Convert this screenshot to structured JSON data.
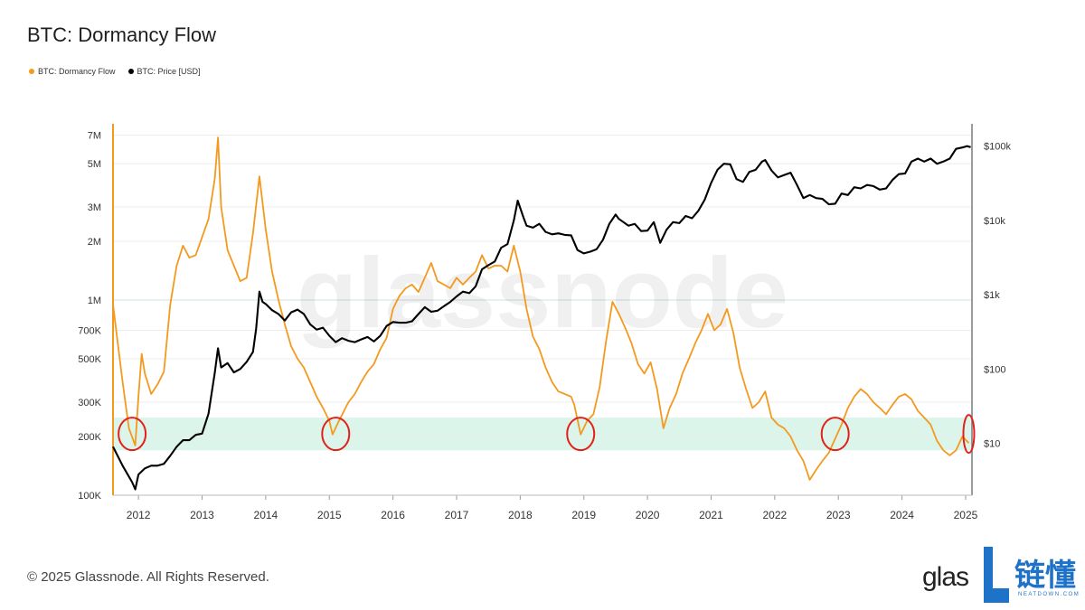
{
  "page": {
    "title": "BTC: Dormancy Flow",
    "copyright": "© 2025 Glassnode. All Rights Reserved.",
    "brand_text": "glas",
    "watermark": "glassnode",
    "logo_cn": "链懂",
    "logo_en": "NEATDOWN.COM"
  },
  "colors": {
    "dormancy": "#f39a1e",
    "price": "#000000",
    "band": "#dcf5ea",
    "circle": "#e0221a",
    "logo": "#1e73c8"
  },
  "chart_data": {
    "type": "line",
    "legend": [
      "BTC: Dormancy Flow",
      "BTC: Price [USD]"
    ],
    "x_ticks": [
      "2012",
      "2013",
      "2014",
      "2015",
      "2016",
      "2017",
      "2018",
      "2019",
      "2020",
      "2021",
      "2022",
      "2023",
      "2024",
      "2025"
    ],
    "xlim": [
      2011.6,
      2025.1
    ],
    "y_left": {
      "scale": "log",
      "ylim": [
        100000,
        8000000
      ],
      "ticks": [
        100000,
        200000,
        300000,
        500000,
        700000,
        1000000,
        2000000,
        3000000,
        5000000,
        7000000
      ],
      "tick_labels": [
        "100K",
        "200K",
        "300K",
        "500K",
        "700K",
        "1M",
        "2M",
        "3M",
        "5M",
        "7M"
      ]
    },
    "y_right": {
      "scale": "log",
      "ylim": [
        2,
        200000
      ],
      "ticks": [
        10,
        100,
        1000,
        10000,
        100000
      ],
      "tick_labels": [
        "$10",
        "$100",
        "$1k",
        "$10k",
        "$100k"
      ]
    },
    "band": {
      "axis": "left",
      "range": [
        170000,
        250000
      ]
    },
    "circled_lows": [
      2011.9,
      2015.1,
      2018.95,
      2022.95,
      2025.05
    ],
    "series": [
      {
        "name": "BTC: Dormancy Flow",
        "axis": "left",
        "points": [
          [
            2011.6,
            950000
          ],
          [
            2011.65,
            700000
          ],
          [
            2011.75,
            380000
          ],
          [
            2011.85,
            220000
          ],
          [
            2011.95,
            180000
          ],
          [
            2012.0,
            320000
          ],
          [
            2012.05,
            530000
          ],
          [
            2012.1,
            420000
          ],
          [
            2012.2,
            330000
          ],
          [
            2012.3,
            370000
          ],
          [
            2012.4,
            430000
          ],
          [
            2012.5,
            950000
          ],
          [
            2012.6,
            1500000
          ],
          [
            2012.7,
            1900000
          ],
          [
            2012.8,
            1650000
          ],
          [
            2012.9,
            1700000
          ],
          [
            2013.0,
            2100000
          ],
          [
            2013.1,
            2600000
          ],
          [
            2013.2,
            4200000
          ],
          [
            2013.25,
            6800000
          ],
          [
            2013.3,
            3000000
          ],
          [
            2013.4,
            1800000
          ],
          [
            2013.5,
            1500000
          ],
          [
            2013.6,
            1250000
          ],
          [
            2013.7,
            1300000
          ],
          [
            2013.8,
            2200000
          ],
          [
            2013.9,
            4300000
          ],
          [
            2014.0,
            2300000
          ],
          [
            2014.1,
            1400000
          ],
          [
            2014.2,
            1000000
          ],
          [
            2014.3,
            750000
          ],
          [
            2014.4,
            580000
          ],
          [
            2014.5,
            500000
          ],
          [
            2014.6,
            450000
          ],
          [
            2014.7,
            380000
          ],
          [
            2014.8,
            320000
          ],
          [
            2014.9,
            280000
          ],
          [
            2015.0,
            240000
          ],
          [
            2015.05,
            205000
          ],
          [
            2015.15,
            240000
          ],
          [
            2015.3,
            300000
          ],
          [
            2015.4,
            330000
          ],
          [
            2015.5,
            380000
          ],
          [
            2015.6,
            430000
          ],
          [
            2015.7,
            470000
          ],
          [
            2015.8,
            560000
          ],
          [
            2015.9,
            640000
          ],
          [
            2016.0,
            900000
          ],
          [
            2016.1,
            1050000
          ],
          [
            2016.2,
            1150000
          ],
          [
            2016.3,
            1200000
          ],
          [
            2016.4,
            1100000
          ],
          [
            2016.5,
            1300000
          ],
          [
            2016.6,
            1550000
          ],
          [
            2016.7,
            1250000
          ],
          [
            2016.8,
            1200000
          ],
          [
            2016.9,
            1150000
          ],
          [
            2017.0,
            1300000
          ],
          [
            2017.1,
            1200000
          ],
          [
            2017.2,
            1300000
          ],
          [
            2017.3,
            1400000
          ],
          [
            2017.4,
            1700000
          ],
          [
            2017.5,
            1450000
          ],
          [
            2017.6,
            1500000
          ],
          [
            2017.7,
            1500000
          ],
          [
            2017.8,
            1400000
          ],
          [
            2017.9,
            1900000
          ],
          [
            2018.0,
            1400000
          ],
          [
            2018.1,
            900000
          ],
          [
            2018.2,
            650000
          ],
          [
            2018.3,
            560000
          ],
          [
            2018.4,
            450000
          ],
          [
            2018.5,
            380000
          ],
          [
            2018.6,
            340000
          ],
          [
            2018.7,
            330000
          ],
          [
            2018.8,
            320000
          ],
          [
            2018.85,
            290000
          ],
          [
            2018.95,
            205000
          ],
          [
            2019.05,
            240000
          ],
          [
            2019.15,
            260000
          ],
          [
            2019.25,
            360000
          ],
          [
            2019.35,
            620000
          ],
          [
            2019.45,
            980000
          ],
          [
            2019.55,
            850000
          ],
          [
            2019.65,
            720000
          ],
          [
            2019.75,
            600000
          ],
          [
            2019.85,
            470000
          ],
          [
            2019.95,
            420000
          ],
          [
            2020.05,
            480000
          ],
          [
            2020.15,
            350000
          ],
          [
            2020.25,
            220000
          ],
          [
            2020.35,
            280000
          ],
          [
            2020.45,
            330000
          ],
          [
            2020.55,
            420000
          ],
          [
            2020.65,
            500000
          ],
          [
            2020.75,
            600000
          ],
          [
            2020.85,
            700000
          ],
          [
            2020.95,
            850000
          ],
          [
            2021.05,
            700000
          ],
          [
            2021.15,
            750000
          ],
          [
            2021.25,
            900000
          ],
          [
            2021.35,
            680000
          ],
          [
            2021.45,
            450000
          ],
          [
            2021.55,
            350000
          ],
          [
            2021.65,
            280000
          ],
          [
            2021.75,
            300000
          ],
          [
            2021.85,
            340000
          ],
          [
            2021.95,
            250000
          ],
          [
            2022.05,
            230000
          ],
          [
            2022.15,
            220000
          ],
          [
            2022.25,
            200000
          ],
          [
            2022.35,
            170000
          ],
          [
            2022.45,
            150000
          ],
          [
            2022.55,
            120000
          ],
          [
            2022.65,
            135000
          ],
          [
            2022.75,
            150000
          ],
          [
            2022.85,
            165000
          ],
          [
            2022.95,
            195000
          ],
          [
            2023.05,
            230000
          ],
          [
            2023.15,
            280000
          ],
          [
            2023.25,
            320000
          ],
          [
            2023.35,
            350000
          ],
          [
            2023.45,
            330000
          ],
          [
            2023.55,
            300000
          ],
          [
            2023.65,
            280000
          ],
          [
            2023.75,
            260000
          ],
          [
            2023.85,
            290000
          ],
          [
            2023.95,
            320000
          ],
          [
            2024.05,
            330000
          ],
          [
            2024.15,
            310000
          ],
          [
            2024.25,
            270000
          ],
          [
            2024.35,
            250000
          ],
          [
            2024.45,
            230000
          ],
          [
            2024.55,
            190000
          ],
          [
            2024.65,
            170000
          ],
          [
            2024.75,
            160000
          ],
          [
            2024.85,
            170000
          ],
          [
            2024.95,
            200000
          ],
          [
            2025.05,
            185000
          ]
        ]
      },
      {
        "name": "BTC: Price [USD]",
        "axis": "right",
        "points": [
          [
            2011.6,
            9
          ],
          [
            2011.75,
            5
          ],
          [
            2011.9,
            3
          ],
          [
            2011.95,
            2.4
          ],
          [
            2012.0,
            3.8
          ],
          [
            2012.1,
            4.6
          ],
          [
            2012.2,
            5
          ],
          [
            2012.3,
            5
          ],
          [
            2012.4,
            5.3
          ],
          [
            2012.5,
            6.8
          ],
          [
            2012.6,
            9
          ],
          [
            2012.7,
            11
          ],
          [
            2012.8,
            11
          ],
          [
            2012.9,
            13
          ],
          [
            2013.0,
            13.5
          ],
          [
            2013.1,
            25
          ],
          [
            2013.2,
            90
          ],
          [
            2013.25,
            190
          ],
          [
            2013.3,
            105
          ],
          [
            2013.4,
            120
          ],
          [
            2013.5,
            90
          ],
          [
            2013.6,
            100
          ],
          [
            2013.7,
            125
          ],
          [
            2013.8,
            170
          ],
          [
            2013.85,
            350
          ],
          [
            2013.9,
            1100
          ],
          [
            2013.95,
            800
          ],
          [
            2014.0,
            750
          ],
          [
            2014.1,
            620
          ],
          [
            2014.2,
            550
          ],
          [
            2014.3,
            450
          ],
          [
            2014.4,
            580
          ],
          [
            2014.5,
            630
          ],
          [
            2014.6,
            550
          ],
          [
            2014.7,
            400
          ],
          [
            2014.8,
            340
          ],
          [
            2014.9,
            360
          ],
          [
            2015.0,
            280
          ],
          [
            2015.1,
            230
          ],
          [
            2015.2,
            260
          ],
          [
            2015.3,
            240
          ],
          [
            2015.4,
            230
          ],
          [
            2015.5,
            250
          ],
          [
            2015.6,
            270
          ],
          [
            2015.7,
            235
          ],
          [
            2015.8,
            280
          ],
          [
            2015.9,
            380
          ],
          [
            2016.0,
            430
          ],
          [
            2016.1,
            420
          ],
          [
            2016.2,
            420
          ],
          [
            2016.3,
            440
          ],
          [
            2016.4,
            550
          ],
          [
            2016.5,
            680
          ],
          [
            2016.6,
            590
          ],
          [
            2016.7,
            610
          ],
          [
            2016.8,
            700
          ],
          [
            2016.9,
            800
          ],
          [
            2017.0,
            950
          ],
          [
            2017.1,
            1100
          ],
          [
            2017.2,
            1050
          ],
          [
            2017.3,
            1300
          ],
          [
            2017.4,
            2200
          ],
          [
            2017.5,
            2500
          ],
          [
            2017.6,
            2800
          ],
          [
            2017.7,
            4300
          ],
          [
            2017.8,
            4800
          ],
          [
            2017.9,
            10000
          ],
          [
            2017.96,
            18500
          ],
          [
            2018.05,
            11000
          ],
          [
            2018.1,
            8500
          ],
          [
            2018.2,
            8000
          ],
          [
            2018.3,
            9000
          ],
          [
            2018.4,
            7000
          ],
          [
            2018.5,
            6500
          ],
          [
            2018.6,
            6700
          ],
          [
            2018.7,
            6400
          ],
          [
            2018.8,
            6300
          ],
          [
            2018.9,
            4000
          ],
          [
            2019.0,
            3600
          ],
          [
            2019.1,
            3800
          ],
          [
            2019.2,
            4100
          ],
          [
            2019.3,
            5500
          ],
          [
            2019.4,
            9000
          ],
          [
            2019.5,
            12000
          ],
          [
            2019.55,
            10500
          ],
          [
            2019.7,
            8500
          ],
          [
            2019.8,
            9000
          ],
          [
            2019.9,
            7200
          ],
          [
            2020.0,
            7300
          ],
          [
            2020.1,
            9500
          ],
          [
            2020.2,
            5000
          ],
          [
            2020.3,
            7500
          ],
          [
            2020.4,
            9500
          ],
          [
            2020.5,
            9200
          ],
          [
            2020.6,
            11500
          ],
          [
            2020.7,
            10700
          ],
          [
            2020.8,
            13500
          ],
          [
            2020.9,
            19000
          ],
          [
            2021.0,
            32000
          ],
          [
            2021.1,
            48000
          ],
          [
            2021.2,
            58000
          ],
          [
            2021.3,
            57000
          ],
          [
            2021.4,
            36000
          ],
          [
            2021.5,
            33000
          ],
          [
            2021.6,
            45000
          ],
          [
            2021.7,
            48000
          ],
          [
            2021.8,
            62000
          ],
          [
            2021.85,
            65000
          ],
          [
            2021.95,
            47000
          ],
          [
            2022.05,
            38000
          ],
          [
            2022.15,
            41000
          ],
          [
            2022.25,
            44000
          ],
          [
            2022.35,
            30000
          ],
          [
            2022.45,
            20000
          ],
          [
            2022.55,
            22000
          ],
          [
            2022.65,
            20000
          ],
          [
            2022.75,
            19500
          ],
          [
            2022.85,
            16500
          ],
          [
            2022.95,
            16800
          ],
          [
            2023.05,
            23000
          ],
          [
            2023.15,
            22000
          ],
          [
            2023.25,
            28000
          ],
          [
            2023.35,
            27000
          ],
          [
            2023.45,
            30000
          ],
          [
            2023.55,
            29000
          ],
          [
            2023.65,
            26000
          ],
          [
            2023.75,
            27000
          ],
          [
            2023.85,
            35000
          ],
          [
            2023.95,
            42000
          ],
          [
            2024.05,
            43000
          ],
          [
            2024.15,
            62000
          ],
          [
            2024.25,
            68000
          ],
          [
            2024.35,
            62000
          ],
          [
            2024.45,
            68000
          ],
          [
            2024.55,
            58000
          ],
          [
            2024.65,
            62000
          ],
          [
            2024.75,
            68000
          ],
          [
            2024.85,
            92000
          ],
          [
            2024.95,
            96000
          ],
          [
            2025.02,
            100000
          ],
          [
            2025.08,
            97000
          ]
        ]
      }
    ]
  }
}
